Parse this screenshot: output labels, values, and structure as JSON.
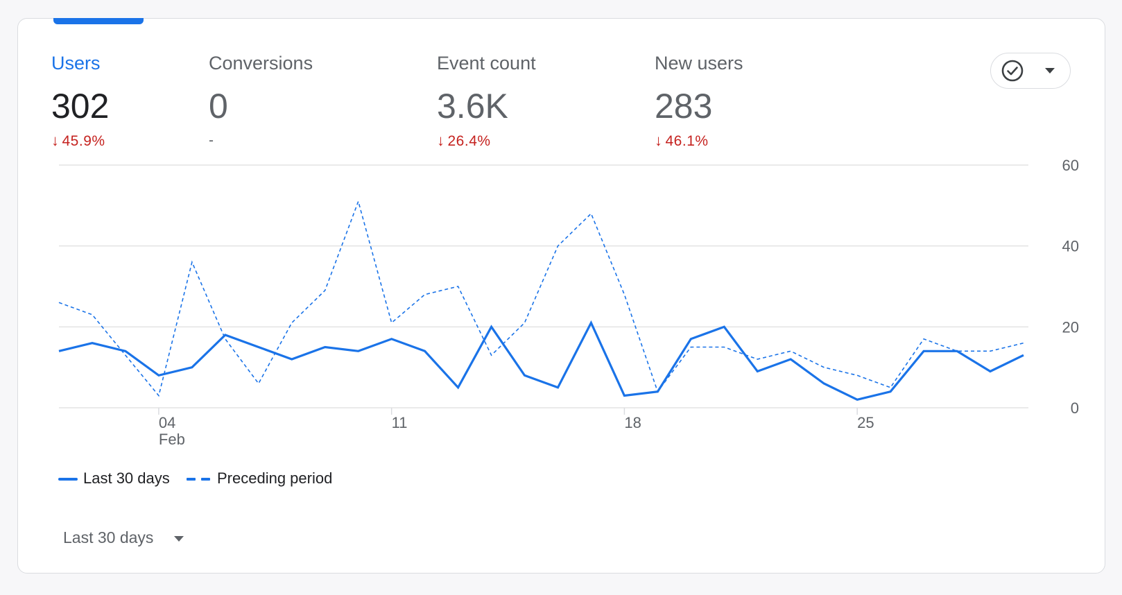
{
  "tabs": [
    {
      "label": "Users",
      "value": "302",
      "change": "45.9%",
      "direction": "down",
      "active": true
    },
    {
      "label": "Conversions",
      "value": "0",
      "change": "-",
      "direction": "none",
      "active": false
    },
    {
      "label": "Event count",
      "value": "3.6K",
      "change": "26.4%",
      "direction": "down",
      "active": false
    },
    {
      "label": "New users",
      "value": "283",
      "change": "46.1%",
      "direction": "down",
      "active": false
    }
  ],
  "compare_button": {
    "icon": "check-circle-icon",
    "caret_icon": "caret-down-icon"
  },
  "chart_data": {
    "type": "line",
    "x": [
      1,
      2,
      3,
      4,
      5,
      6,
      7,
      8,
      9,
      10,
      11,
      12,
      13,
      14,
      15,
      16,
      17,
      18,
      19,
      20,
      21,
      22,
      23,
      24,
      25,
      26,
      27,
      28,
      29,
      30
    ],
    "series": [
      {
        "name": "Last 30 days",
        "style": "solid",
        "values": [
          14,
          16,
          14,
          8,
          10,
          18,
          15,
          12,
          15,
          14,
          17,
          14,
          5,
          20,
          8,
          5,
          21,
          3,
          4,
          17,
          20,
          9,
          12,
          6,
          2,
          4,
          14,
          14,
          9,
          13
        ]
      },
      {
        "name": "Preceding period",
        "style": "dashed",
        "values": [
          26,
          23,
          13,
          3,
          36,
          17,
          6,
          21,
          29,
          51,
          21,
          28,
          30,
          13,
          21,
          40,
          48,
          28,
          4,
          15,
          15,
          12,
          14,
          10,
          8,
          5,
          17,
          14,
          14,
          16
        ]
      }
    ],
    "xticks": [
      {
        "x": 4,
        "label": "04",
        "sublabel": "Feb"
      },
      {
        "x": 11,
        "label": "11",
        "sublabel": ""
      },
      {
        "x": 18,
        "label": "18",
        "sublabel": ""
      },
      {
        "x": 25,
        "label": "25",
        "sublabel": ""
      }
    ],
    "yticks": [
      0,
      20,
      40,
      60
    ],
    "ylim": [
      0,
      60
    ],
    "grid": true,
    "color": "#1a73e8"
  },
  "legend": {
    "items": [
      "Last 30 days",
      "Preceding period"
    ]
  },
  "date_range": {
    "label": "Last 30 days"
  }
}
